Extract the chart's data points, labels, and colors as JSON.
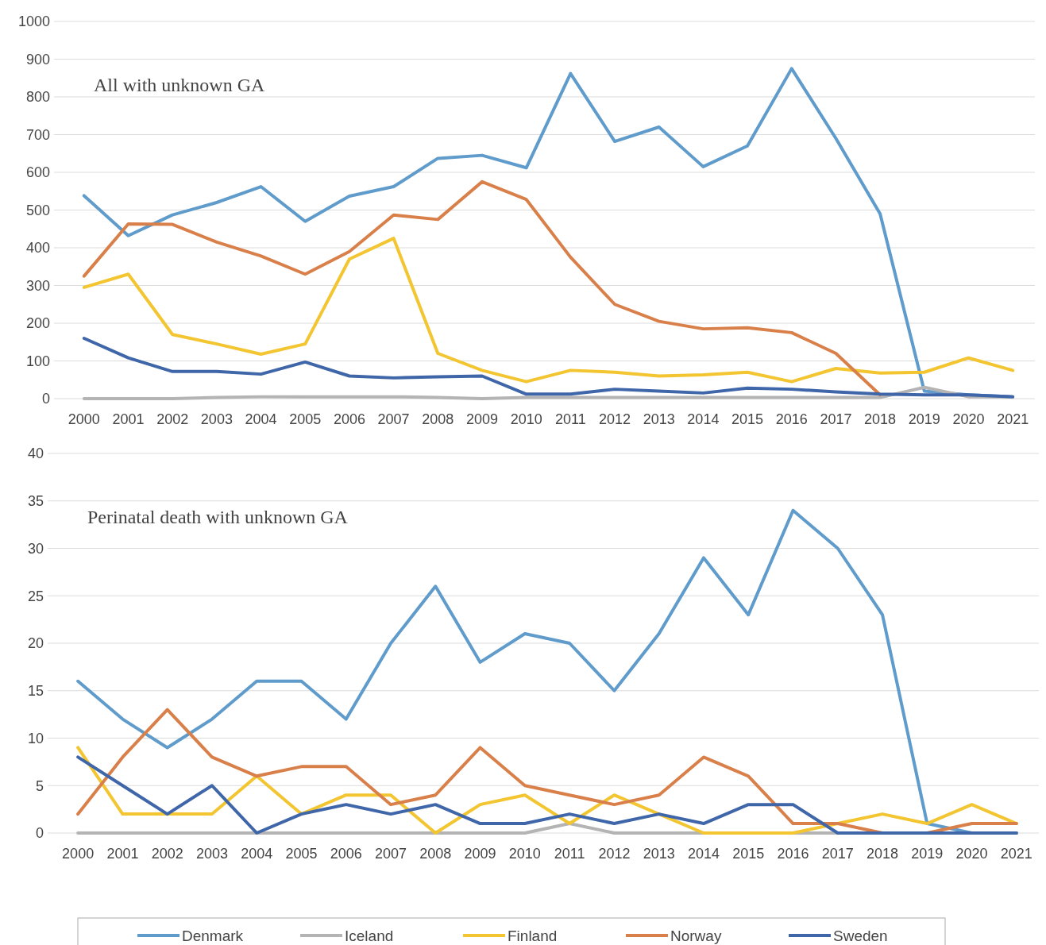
{
  "chart_data": [
    {
      "type": "line",
      "title": "All with unknown GA",
      "categories": [
        "2000",
        "2001",
        "2002",
        "2003",
        "2004",
        "2005",
        "2006",
        "2007",
        "2008",
        "2009",
        "2010",
        "2011",
        "2012",
        "2013",
        "2014",
        "2015",
        "2016",
        "2017",
        "2018",
        "2019",
        "2020",
        "2021"
      ],
      "series": [
        {
          "color": "#5f9bcb",
          "values": [
            538,
            432,
            487,
            520,
            562,
            470,
            537,
            562,
            637,
            645,
            612,
            862,
            682,
            720,
            615,
            670,
            875,
            690,
            490,
            20,
            10,
            5
          ]
        },
        {
          "color": "#b4b4b4",
          "values": [
            0,
            0,
            0,
            3,
            5,
            5,
            5,
            5,
            3,
            0,
            3,
            3,
            3,
            3,
            3,
            3,
            3,
            3,
            3,
            30,
            5,
            5
          ]
        },
        {
          "color": "#f2c531",
          "values": [
            295,
            330,
            170,
            145,
            118,
            145,
            370,
            425,
            120,
            75,
            45,
            75,
            70,
            60,
            63,
            70,
            45,
            80,
            68,
            70,
            108,
            75
          ]
        },
        {
          "color": "#d9804a",
          "values": [
            325,
            463,
            462,
            415,
            378,
            330,
            390,
            487,
            475,
            575,
            528,
            375,
            250,
            205,
            185,
            188,
            175,
            120,
            10,
            null,
            null,
            null
          ]
        },
        {
          "color": "#3f66a8",
          "values": [
            160,
            108,
            72,
            72,
            65,
            97,
            60,
            55,
            58,
            60,
            12,
            12,
            25,
            20,
            15,
            28,
            25,
            18,
            12,
            10,
            10,
            5
          ]
        }
      ],
      "ylim": [
        0,
        1000
      ],
      "yticks": [
        0,
        100,
        200,
        300,
        400,
        500,
        600,
        700,
        800,
        900,
        1000
      ],
      "grid": "y",
      "legend": false
    },
    {
      "type": "line",
      "title": "Perinatal death with unknown GA",
      "categories": [
        "2000",
        "2001",
        "2002",
        "2003",
        "2004",
        "2005",
        "2006",
        "2007",
        "2008",
        "2009",
        "2010",
        "2011",
        "2012",
        "2013",
        "2014",
        "2015",
        "2016",
        "2017",
        "2018",
        "2019",
        "2020",
        "2021"
      ],
      "series": [
        {
          "name": "Denmark",
          "color": "#5f9bcb",
          "values": [
            16,
            12,
            9,
            12,
            16,
            16,
            12,
            20,
            26,
            18,
            21,
            20,
            15,
            21,
            29,
            23,
            34,
            30,
            23,
            1,
            0,
            0
          ]
        },
        {
          "name": "Iceland",
          "color": "#b4b4b4",
          "values": [
            0,
            0,
            0,
            0,
            0,
            0,
            0,
            0,
            0,
            0,
            0,
            1,
            0,
            0,
            0,
            0,
            0,
            0,
            0,
            0,
            0,
            0
          ]
        },
        {
          "name": "Finland",
          "color": "#f2c531",
          "values": [
            9,
            2,
            2,
            2,
            6,
            2,
            4,
            4,
            0,
            3,
            4,
            1,
            4,
            2,
            0,
            0,
            0,
            1,
            2,
            1,
            3,
            1
          ]
        },
        {
          "name": "Norway",
          "color": "#d9804a",
          "values": [
            2,
            8,
            13,
            8,
            6,
            7,
            7,
            3,
            4,
            9,
            5,
            4,
            3,
            4,
            8,
            6,
            1,
            1,
            0,
            0,
            1,
            1
          ]
        },
        {
          "name": "Sweden",
          "color": "#3f66a8",
          "values": [
            8,
            5,
            2,
            5,
            0,
            2,
            3,
            2,
            3,
            1,
            1,
            2,
            1,
            2,
            1,
            3,
            3,
            0,
            0,
            0,
            0,
            0
          ]
        }
      ],
      "ylim": [
        0,
        40
      ],
      "yticks": [
        0,
        5,
        10,
        15,
        20,
        25,
        30,
        35,
        40
      ],
      "grid": "y",
      "legend": "bottom"
    }
  ]
}
